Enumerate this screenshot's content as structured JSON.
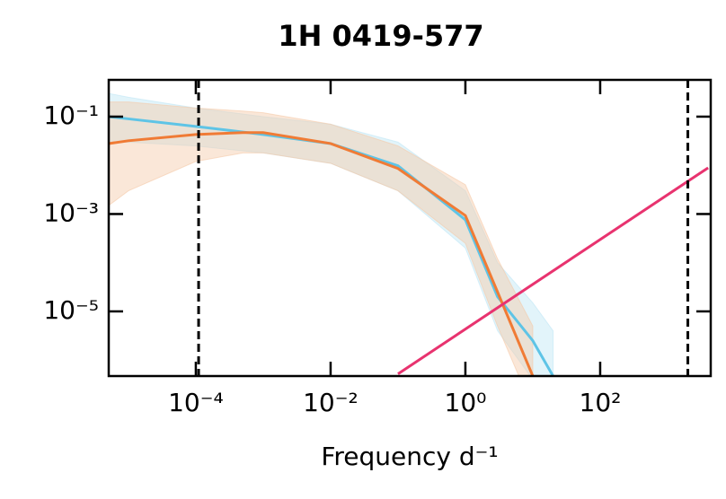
{
  "chart_data": {
    "type": "line",
    "title": "1H 0419-577",
    "x_label": "Frequency d⁻¹",
    "xscale": "log",
    "yscale": "log",
    "xlim": [
      5.1e-06,
      4370
    ],
    "ylim": [
      4.7e-07,
      0.569
    ],
    "xticks": [
      {
        "value": 0.0001,
        "label": "10⁻⁴"
      },
      {
        "value": 0.01,
        "label": "10⁻²"
      },
      {
        "value": 1,
        "label": "10⁰"
      },
      {
        "value": 100,
        "label": "10²"
      }
    ],
    "yticks": [
      {
        "value": 0.1,
        "label": "10⁻¹"
      },
      {
        "value": 0.001,
        "label": "10⁻³"
      },
      {
        "value": 1e-05,
        "label": "10⁻⁵"
      }
    ],
    "vlines": [
      0.00011,
      2000
    ],
    "series": [
      {
        "color": "#5ec4e6",
        "band_color": "#bfe6f5",
        "x": [
          5.1e-06,
          1e-05,
          0.0001,
          0.001,
          0.01,
          0.1,
          1,
          3,
          10,
          20
        ],
        "values": [
          0.1,
          0.09,
          0.063,
          0.043,
          0.028,
          0.0098,
          0.00076,
          2e-05,
          2.5e-06,
          4.7e-07
        ],
        "lower": [
          0.03,
          0.03,
          0.025,
          0.018,
          0.011,
          0.003,
          0.0002,
          4e-06,
          4e-07,
          1e-07
        ],
        "upper": [
          0.3,
          0.25,
          0.15,
          0.1,
          0.07,
          0.03,
          0.003,
          0.0001,
          1.5e-05,
          4e-06
        ]
      },
      {
        "color": "#f07b35",
        "band_color": "#f5c9a8",
        "x": [
          5.1e-06,
          1e-05,
          0.0001,
          0.0005,
          0.001,
          0.01,
          0.1,
          1,
          3,
          10
        ],
        "values": [
          0.028,
          0.032,
          0.043,
          0.047,
          0.047,
          0.028,
          0.0086,
          0.00093,
          2.5e-05,
          4.7e-07
        ],
        "lower": [
          0.0015,
          0.003,
          0.012,
          0.018,
          0.018,
          0.011,
          0.003,
          0.00025,
          5e-06,
          1e-07
        ],
        "upper": [
          0.2,
          0.2,
          0.15,
          0.13,
          0.12,
          0.07,
          0.025,
          0.004,
          0.00012,
          5e-06
        ]
      },
      {
        "color": "#e8336f",
        "x": [
          0.1,
          4000
        ],
        "values": [
          5.2e-07,
          0.0089
        ]
      }
    ]
  }
}
